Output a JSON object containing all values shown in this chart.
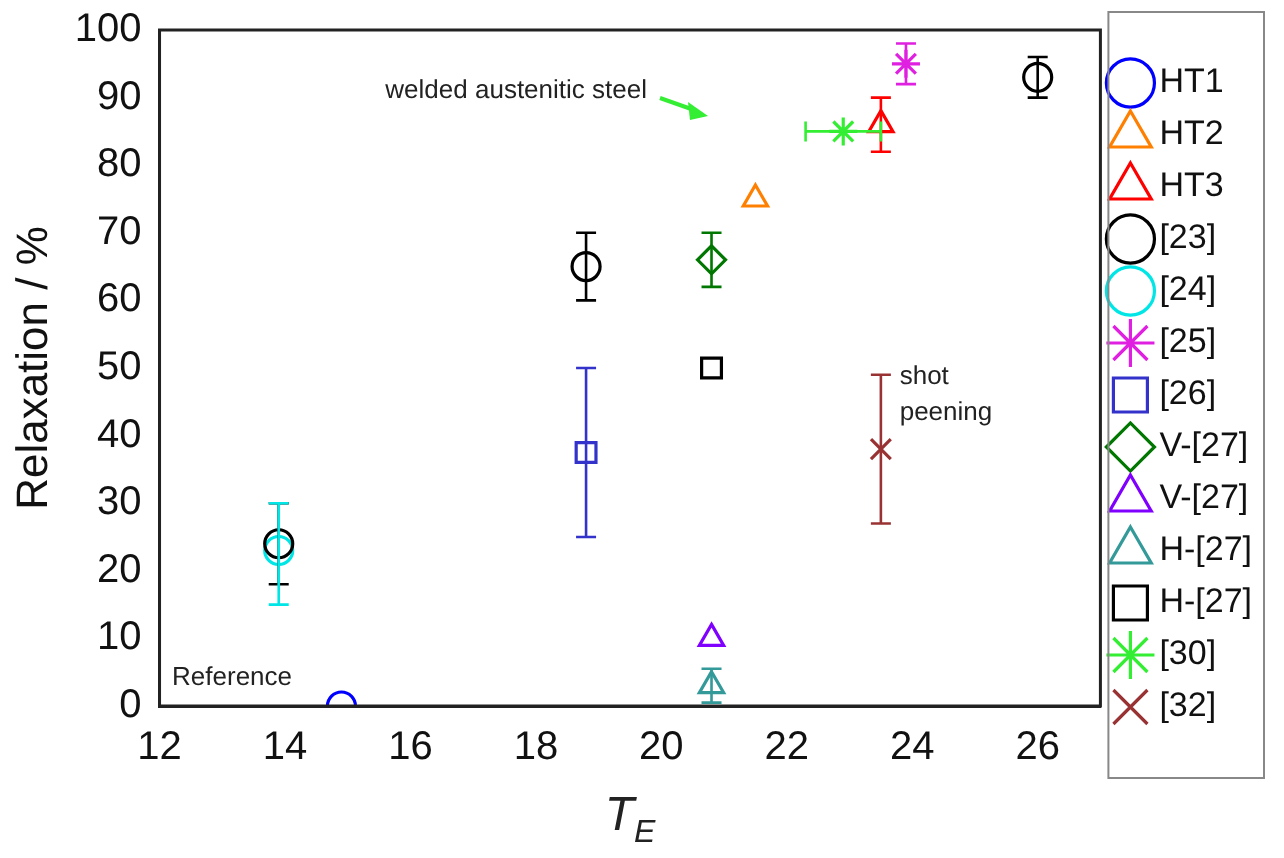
{
  "chart_data": {
    "type": "scatter",
    "xlabel": "T$_{E}$",
    "ylabel": "Relaxation / %",
    "xlim": [
      12,
      27
    ],
    "xticks": [
      12,
      14,
      16,
      18,
      20,
      22,
      24,
      26
    ],
    "ylim": [
      0,
      100
    ],
    "yticks": [
      0,
      10,
      20,
      30,
      40,
      50,
      60,
      70,
      80,
      90,
      100
    ],
    "grid": false,
    "legend": "right",
    "series": [
      {
        "name": "HT1",
        "color": "#0000ff",
        "marker": "circle",
        "x": [
          14.9
        ],
        "values": [
          0
        ]
      },
      {
        "name": "HT2",
        "color": "#ff8000",
        "marker": "triangle",
        "x": [
          21.5
        ],
        "values": [
          75
        ]
      },
      {
        "name": "HT3",
        "color": "#ff0000",
        "marker": "triangle",
        "x": [
          23.5
        ],
        "values": [
          86
        ],
        "errors": [
          4
        ]
      },
      {
        "name": "[23]",
        "color": "#000000",
        "marker": "circle",
        "x": [
          13.9,
          18.8,
          26.0
        ],
        "values": [
          24,
          65,
          93
        ],
        "errors": [
          6,
          5,
          3
        ]
      },
      {
        "name": "[24]",
        "color": "#00e5e5",
        "marker": "circle",
        "x": [
          13.9
        ],
        "values": [
          23
        ],
        "errors": [
          [
            15,
            30
          ]
        ]
      },
      {
        "name": "[25]",
        "color": "#e020e0",
        "marker": "cross",
        "x": [
          23.9
        ],
        "values": [
          95
        ],
        "errors": [
          3
        ]
      },
      {
        "name": "[26]",
        "color": "#3333cc",
        "marker": "square",
        "x": [
          18.8
        ],
        "values": [
          37.5
        ],
        "errors": [
          [
            25,
            50
          ]
        ]
      },
      {
        "name": "V-[27]",
        "color": "#007700",
        "marker": "diamond",
        "x": [
          20.8
        ],
        "values": [
          66
        ],
        "errors": [
          4
        ]
      },
      {
        "name": "V-[27]",
        "color": "#8000ff",
        "marker": "triangle",
        "x": [
          20.8
        ],
        "values": [
          10
        ]
      },
      {
        "name": "H-[27]",
        "color": "#339999",
        "marker": "triangle",
        "x": [
          20.8
        ],
        "values": [
          3
        ],
        "errors": [
          2.5
        ]
      },
      {
        "name": "H-[27]",
        "color": "#000000",
        "marker": "square",
        "x": [
          20.8
        ],
        "values": [
          50
        ]
      },
      {
        "name": "[30]",
        "color": "#33ee33",
        "marker": "cross",
        "x": [
          22.9
        ],
        "values": [
          85
        ],
        "xerrors": [
          0.6
        ]
      },
      {
        "name": "[32]",
        "color": "#993333",
        "x": [
          23.5
        ],
        "values": [
          38
        ],
        "errors": [
          [
            27,
            49
          ]
        ]
      }
    ],
    "annotations": [
      "Reference",
      "welded austenitic steel",
      "shot\npeening"
    ]
  }
}
